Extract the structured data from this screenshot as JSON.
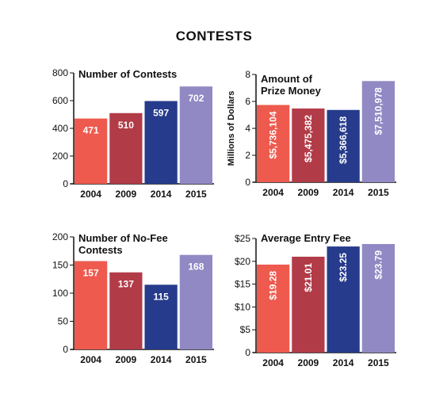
{
  "page": {
    "title": "CONTESTS"
  },
  "colors": [
    "#ee5a4e",
    "#b23b48",
    "#263b8c",
    "#9189c4"
  ],
  "chart_data": [
    {
      "type": "bar",
      "title": "Number of Contests",
      "ylabel": "",
      "categories": [
        "2004",
        "2009",
        "2014",
        "2015"
      ],
      "values": [
        471,
        510,
        597,
        702
      ],
      "labels": [
        "471",
        "510",
        "597",
        "702"
      ],
      "ylim": [
        0,
        800
      ],
      "yticks": [
        0,
        200,
        400,
        600,
        800
      ],
      "ytick_labels": [
        "0",
        "200",
        "400",
        "600",
        "800"
      ],
      "label_orientation": "horizontal",
      "grid": false
    },
    {
      "type": "bar",
      "title": "Amount of Prize Money",
      "title_lines": [
        "Amount of",
        "Prize Money"
      ],
      "ylabel": "Millions of Dollars",
      "categories": [
        "2004",
        "2009",
        "2014",
        "2015"
      ],
      "values": [
        5.736104,
        5.475382,
        5.366618,
        7.510978
      ],
      "labels": [
        "$5,736,104",
        "$5,475,382",
        "$5,366,618",
        "$7,510,978"
      ],
      "ylim": [
        0,
        8
      ],
      "yticks": [
        0,
        2,
        4,
        6,
        8
      ],
      "ytick_labels": [
        "0",
        "2",
        "4",
        "6",
        "8"
      ],
      "label_orientation": "vertical",
      "grid": false
    },
    {
      "type": "bar",
      "title": "Number of No-Fee Contests",
      "title_lines": [
        "Number of No-Fee",
        "Contests"
      ],
      "ylabel": "",
      "categories": [
        "2004",
        "2009",
        "2014",
        "2015"
      ],
      "values": [
        157,
        137,
        115,
        168
      ],
      "labels": [
        "157",
        "137",
        "115",
        "168"
      ],
      "ylim": [
        0,
        200
      ],
      "yticks": [
        0,
        50,
        100,
        150,
        200
      ],
      "ytick_labels": [
        "0",
        "50",
        "100",
        "150",
        "200"
      ],
      "label_orientation": "horizontal",
      "grid": false
    },
    {
      "type": "bar",
      "title": "Average Entry Fee",
      "ylabel": "",
      "categories": [
        "2004",
        "2009",
        "2014",
        "2015"
      ],
      "values": [
        19.28,
        21.01,
        23.25,
        23.79
      ],
      "labels": [
        "$19.28",
        "$21.01",
        "$23.25",
        "$23.79"
      ],
      "ylim": [
        0,
        25
      ],
      "yticks": [
        0,
        5,
        10,
        15,
        20,
        25
      ],
      "ytick_labels": [
        "0",
        "$5",
        "$10",
        "$15",
        "$20",
        "$25"
      ],
      "label_orientation": "vertical",
      "grid": false
    }
  ]
}
